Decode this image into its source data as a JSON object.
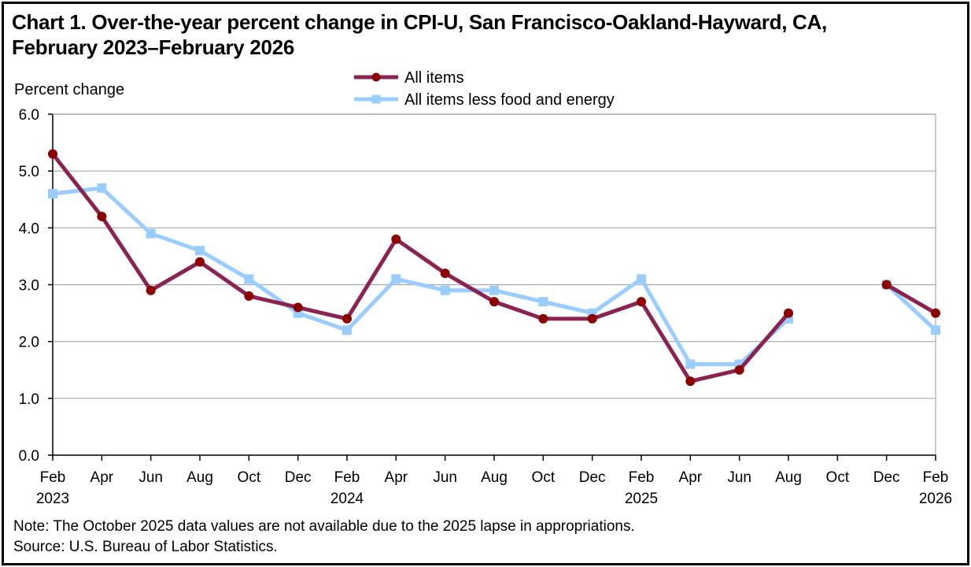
{
  "chart_data": {
    "type": "line",
    "title_line1": "Chart 1. Over-the-year percent change in CPI-U, San Francisco-Oakland-Hayward, CA,",
    "title_line2": "February 2023–February 2026",
    "ylabel": "Percent change",
    "ylim": [
      0,
      6
    ],
    "yticks": [
      "0.0",
      "1.0",
      "2.0",
      "3.0",
      "4.0",
      "5.0",
      "6.0"
    ],
    "grid": true,
    "legend_position": "top-center",
    "categories": [
      "Feb",
      "Apr",
      "Jun",
      "Aug",
      "Oct",
      "Dec",
      "Feb",
      "Apr",
      "Jun",
      "Aug",
      "Oct",
      "Dec",
      "Feb",
      "Apr",
      "Jun",
      "Aug",
      "Oct",
      "Dec",
      "Feb"
    ],
    "year_labels": [
      "2023",
      "",
      "",
      "",
      "",
      "",
      "2024",
      "",
      "",
      "",
      "",
      "",
      "2025",
      "",
      "",
      "",
      "",
      "",
      "2026"
    ],
    "series": [
      {
        "name": "All items",
        "color": "#8B2252",
        "marker_color": "#8B0000",
        "marker": "circle",
        "values": [
          5.3,
          4.2,
          2.9,
          3.4,
          2.8,
          2.6,
          2.4,
          3.8,
          3.2,
          2.7,
          2.4,
          2.4,
          2.7,
          1.3,
          1.5,
          2.5,
          null,
          3.0,
          2.5
        ]
      },
      {
        "name": "All items less food and energy",
        "color": "#99CCFF",
        "marker_color": "#99CCFF",
        "marker": "square",
        "values": [
          4.6,
          4.7,
          3.9,
          3.6,
          3.1,
          2.5,
          2.2,
          3.1,
          2.9,
          2.9,
          2.7,
          2.5,
          3.1,
          1.6,
          1.6,
          2.4,
          null,
          3.0,
          2.2
        ]
      }
    ]
  },
  "footer": {
    "note": "Note: The October 2025 data values are not available due to the 2025 lapse in appropriations.",
    "source": "Source: U.S. Bureau of Labor Statistics."
  }
}
